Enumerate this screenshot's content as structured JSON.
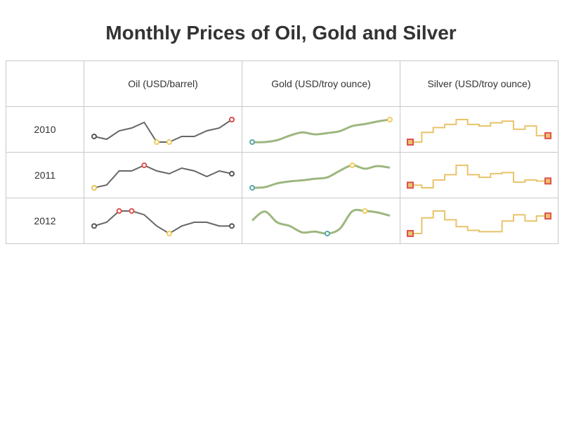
{
  "title": "Monthly Prices of Oil, Gold and Silver",
  "columns": [
    "",
    "Oil (USD/barrel)",
    "Gold (USD/troy ounce)",
    "Silver (USD/troy ounce)"
  ],
  "colors": {
    "oil_line": "#666666",
    "gold_line": "#9db77f",
    "silver_line": "#e8c46a",
    "max_marker": "#e05050",
    "min_marker": "#f0cc60",
    "first_last_marker": "#555555",
    "gold_min_marker": "#5aa8a8",
    "silver_square": "#e05050"
  },
  "chart_data": {
    "type": "table",
    "rows": [
      "2010",
      "2011",
      "2012"
    ],
    "series": [
      {
        "column": "Oil (USD/barrel)",
        "style": "line",
        "marker_style": "circle-extremes",
        "data": {
          "2010": [
            77,
            76,
            79,
            80,
            82,
            75,
            75,
            77,
            77,
            79,
            80,
            83
          ],
          "2011": [
            86,
            87,
            92,
            92,
            94,
            92,
            91,
            93,
            92,
            90,
            92,
            91
          ],
          "2012": [
            96,
            97,
            100,
            100,
            99,
            96,
            94,
            96,
            97,
            97,
            96,
            96
          ]
        }
      },
      {
        "column": "Gold (USD/troy ounce)",
        "style": "smooth-line",
        "marker_style": "circle-min-max",
        "data": {
          "2010": [
            1100,
            1100,
            1103,
            1110,
            1115,
            1112,
            1114,
            1117,
            1125,
            1128,
            1132,
            1135
          ],
          "2011": [
            1360,
            1363,
            1382,
            1392,
            1397,
            1405,
            1412,
            1445,
            1472,
            1455,
            1468,
            1460
          ],
          "2012": [
            1655,
            1687,
            1648,
            1635,
            1612,
            1615,
            1608,
            1625,
            1688,
            1689,
            1684,
            1672
          ]
        }
      },
      {
        "column": "Silver (USD/troy ounce)",
        "style": "step",
        "marker_style": "square-first-last",
        "data": {
          "2010": [
            17.2,
            17.8,
            18.1,
            18.3,
            18.6,
            18.3,
            18.2,
            18.4,
            18.5,
            18.0,
            18.2,
            17.6
          ],
          "2011": [
            28.0,
            27.5,
            29.0,
            30.0,
            31.8,
            30.0,
            29.5,
            30.2,
            30.4,
            28.6,
            29.0,
            28.8
          ],
          "2012": [
            31.0,
            33.5,
            34.6,
            33.2,
            32.1,
            31.5,
            31.3,
            31.3,
            33.0,
            34.0,
            33.0,
            33.8
          ]
        }
      }
    ]
  }
}
